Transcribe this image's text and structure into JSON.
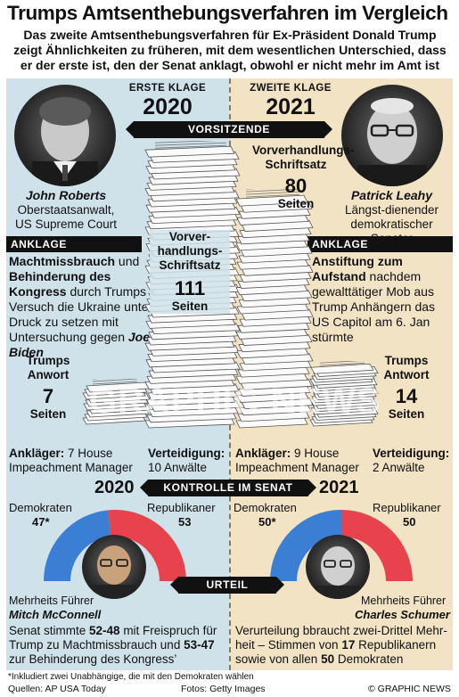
{
  "header": {
    "title": "Trumps Amtsenthebungsverfahren im Vergleich",
    "subtitle": "Das zweite Amtsenthebungsverfahren für Ex-Präsident Donald Trump zeigt Ähnlichkeiten zu früheren, mit dem wesentlichen Unterschied, dass er der erste ist, den der Senat anklagt, obwohl er nicht mehr im Amt ist"
  },
  "columns": {
    "left": {
      "label": "ERSTE KLAGE",
      "year": "2020"
    },
    "right": {
      "label": "ZWEITE KLAGE",
      "year": "2021"
    }
  },
  "banners": {
    "chair": "VORSITZENDE",
    "senate": "KONTROLLE IM SENAT",
    "verdict": "URTEIL"
  },
  "chairs": {
    "left": {
      "name": "John Roberts",
      "role": "Oberstaatsanwalt, US Supreme Court"
    },
    "right": {
      "name": "Patrick Leahy",
      "role": "Längst-dienender demokratischer Senator"
    }
  },
  "charges": {
    "tag": "ANKLAGE",
    "left": {
      "bold1": "Machtmissbrauch",
      "text1": " und ",
      "bold2": "Behinderung des Kongress",
      "text2": " durch Trumps Versuch die Ukraine unter Druck zu setzen mit Untersuchung gegen ",
      "name": "Joe Biden"
    },
    "right": {
      "bold1": "Anstiftung zum Aufstand",
      "text1": " nachdem gewalttätiger Mob aus Trump Anhängern das US Capitol am 6. Jan stürmte"
    }
  },
  "briefs": {
    "left": {
      "caption": "Vorver-handlungs-Schriftsatz",
      "pages": 111,
      "unit": "Seiten"
    },
    "right": {
      "caption": "Vorverhandlungs-Schriftsatz",
      "pages": 80,
      "unit": "Seiten"
    }
  },
  "responses": {
    "left": {
      "caption": "Trumps Anwort",
      "pages": 7,
      "unit": "Seiten"
    },
    "right": {
      "caption": "Trumps Antwort",
      "pages": 14,
      "unit": "Seiten"
    }
  },
  "teams": {
    "left": {
      "prosecutors_label": "Ankläger:",
      "prosecutors": "7 House Impeachment Manager",
      "defense_label": "Verteidigung:",
      "defense": "10 Anwälte"
    },
    "right": {
      "prosecutors_label": "Ankläger:",
      "prosecutors": "9 House Impeachment Manager",
      "defense_label": "Verteidigung:",
      "defense": "2 Anwälte"
    }
  },
  "senate": {
    "left": {
      "year": "2020",
      "dem_label": "Demokraten",
      "dem_seats": "47*",
      "dem_value": 47,
      "rep_label": "Republikaner",
      "rep_seats": "53",
      "rep_value": 53,
      "leader_role": "Mehrheits Führer",
      "leader_name": "Mitch McConnell"
    },
    "right": {
      "year": "2021",
      "dem_label": "Demokraten",
      "dem_seats": "50*",
      "dem_value": 50,
      "rep_label": "Republikaner",
      "rep_seats": "50",
      "rep_value": 50,
      "leader_role": "Mehrheits Führer",
      "leader_name": "Charles Schumer"
    }
  },
  "verdict": {
    "left": {
      "t1": "Senat stimmte ",
      "b1": "52-48",
      "t2": " mit Freispruch für Trump zu Machtmissbrauch und ",
      "b2": "53-47",
      "t3": " zur Behinderung des Kongress’"
    },
    "right": {
      "t1": "Verurteilung bbraucht zwei-Drittel Mehr-heit – Stimmen von ",
      "b1": "17",
      "t2": " Republikanern sowie von allen ",
      "b2": "50",
      "t3": " Demokraten"
    }
  },
  "footer": {
    "footnote": "*Inkludiert zwei Unabhängige, die mit den Demokraten wählen",
    "sources": "Quellen: AP USA Today",
    "photos": "Fotos: Getty Images",
    "brand": "© GRAPHIC NEWS",
    "watermark": "GRAPHIC NEWS"
  },
  "colors": {
    "democrat": "#3a7fd3",
    "republican": "#e8434c",
    "panel_left": "#cfe2ea",
    "panel_right": "#f2e3c4"
  }
}
